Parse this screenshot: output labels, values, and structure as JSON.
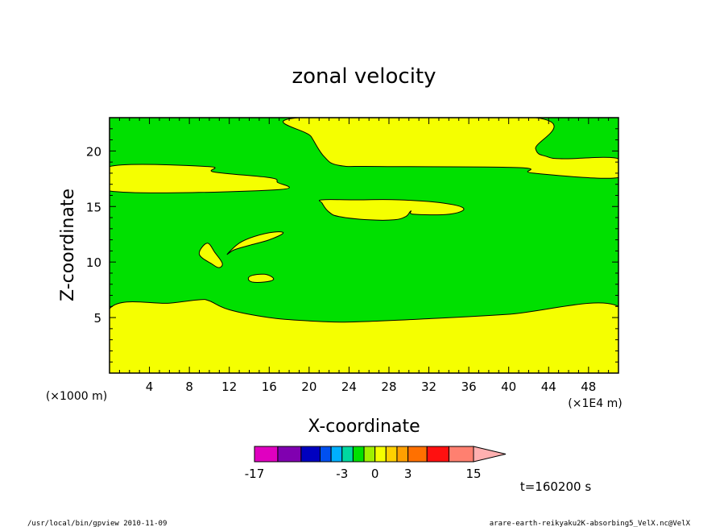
{
  "chart_data": {
    "type": "contour",
    "title": "zonal velocity",
    "xlabel": "X-coordinate",
    "ylabel": "Z-coordinate",
    "x_unit_left": "(×1000 m)",
    "x_unit_right": "(×1E4 m)",
    "xlim": [
      0,
      51
    ],
    "ylim": [
      0,
      23
    ],
    "x_ticks": [
      4,
      8,
      12,
      16,
      20,
      24,
      28,
      32,
      36,
      40,
      44,
      48
    ],
    "y_ticks": [
      5,
      10,
      15,
      20
    ],
    "background_level_color": "#00e000",
    "regions": [
      {
        "name": "lower-layer",
        "color": "#f5ff00",
        "outline": [
          [
            0,
            0
          ],
          [
            51,
            0
          ],
          [
            51,
            6
          ],
          [
            40,
            5.3
          ],
          [
            32,
            4.9
          ],
          [
            24,
            4.6
          ],
          [
            20,
            4.7
          ],
          [
            16,
            5
          ],
          [
            12,
            5.7
          ],
          [
            10,
            6.5
          ],
          [
            9,
            6.6
          ],
          [
            6,
            6.3
          ],
          [
            0,
            5.8
          ]
        ]
      },
      {
        "name": "left-band",
        "color": "#f5ff00",
        "outline": [
          [
            0,
            18.6
          ],
          [
            9.8,
            18.6
          ],
          [
            10.5,
            18.1
          ],
          [
            16,
            17.6
          ],
          [
            16.8,
            17.2
          ],
          [
            16.6,
            16.5
          ],
          [
            0,
            16.4
          ]
        ]
      },
      {
        "name": "upper-band",
        "color": "#f5ff00",
        "outline": [
          [
            19,
            23
          ],
          [
            42.7,
            23
          ],
          [
            42.7,
            20.2
          ],
          [
            43.8,
            19.5
          ],
          [
            45.5,
            19.3
          ],
          [
            51,
            19.3
          ],
          [
            51,
            17.6
          ],
          [
            42.5,
            18
          ],
          [
            41,
            18.5
          ],
          [
            27,
            18.6
          ],
          [
            23,
            18.7
          ],
          [
            21.5,
            19.5
          ],
          [
            20.2,
            21.3
          ]
        ]
      },
      {
        "name": "mid-lens",
        "color": "#f5ff00",
        "outline": [
          [
            21.3,
            15.6
          ],
          [
            24.5,
            15.6
          ],
          [
            29,
            15.6
          ],
          [
            33.5,
            15.3
          ],
          [
            35.5,
            14.8
          ],
          [
            34,
            14.3
          ],
          [
            30.5,
            14.3
          ],
          [
            30.2,
            14.6
          ],
          [
            29.7,
            14.1
          ],
          [
            28.5,
            13.8
          ],
          [
            26,
            13.8
          ],
          [
            23,
            14.1
          ],
          [
            22,
            14.5
          ],
          [
            21.3,
            15.3
          ]
        ]
      },
      {
        "name": "blob-a",
        "color": "#f5ff00",
        "outline": [
          [
            9,
            10.7
          ],
          [
            9.8,
            11.7
          ],
          [
            10.6,
            10.8
          ],
          [
            11.3,
            9.9
          ],
          [
            11,
            9.5
          ],
          [
            10.3,
            9.8
          ]
        ]
      },
      {
        "name": "blob-b",
        "color": "#f5ff00",
        "outline": [
          [
            11.8,
            10.7
          ],
          [
            13,
            11.7
          ],
          [
            14.5,
            12.3
          ],
          [
            16.5,
            12.7
          ],
          [
            17.4,
            12.6
          ],
          [
            16,
            12
          ],
          [
            14,
            11.5
          ],
          [
            12.5,
            11.1
          ]
        ]
      },
      {
        "name": "blob-c",
        "color": "#f5ff00",
        "outline": [
          [
            13.9,
            8.5
          ],
          [
            14.3,
            8.8
          ],
          [
            15.5,
            8.9
          ],
          [
            16.2,
            8.7
          ],
          [
            16.4,
            8.4
          ],
          [
            15.5,
            8.2
          ],
          [
            14.3,
            8.2
          ]
        ]
      }
    ],
    "colorbar": {
      "segments": [
        {
          "from": -17,
          "to": -12.5,
          "color": "#e000c0"
        },
        {
          "from": -12.5,
          "to": -8,
          "color": "#8000b0"
        },
        {
          "from": -8,
          "to": -5,
          "color": "#0000c0"
        },
        {
          "from": -5,
          "to": -4,
          "color": "#0050f0"
        },
        {
          "from": -4,
          "to": -3,
          "color": "#00b0ff"
        },
        {
          "from": -3,
          "to": -2,
          "color": "#00d8a0"
        },
        {
          "from": -2,
          "to": -1,
          "color": "#00e000"
        },
        {
          "from": -1,
          "to": 0,
          "color": "#a0f000"
        },
        {
          "from": 0,
          "to": 1,
          "color": "#f5ff00"
        },
        {
          "from": 1,
          "to": 2,
          "color": "#ffd000"
        },
        {
          "from": 2,
          "to": 3,
          "color": "#ffa000"
        },
        {
          "from": 3,
          "to": 6,
          "color": "#ff7000"
        },
        {
          "from": 6,
          "to": 10,
          "color": "#ff1010"
        },
        {
          "from": 10,
          "to": 15,
          "color": "#ff8070"
        }
      ],
      "overflow_color": "#ffb0b0",
      "tick_labels": [
        {
          "value": -17,
          "label": "-17"
        },
        {
          "value": -3,
          "label": "-3"
        },
        {
          "value": 0,
          "label": "0"
        },
        {
          "value": 3,
          "label": "3"
        },
        {
          "value": 15,
          "label": "15"
        }
      ]
    },
    "time_label": "t=160200 s"
  },
  "footer": {
    "left": "/usr/local/bin/gpview   2010-11-09",
    "right": "arare-earth-reikyaku2K-absorbing5_VelX.nc@VelX"
  }
}
